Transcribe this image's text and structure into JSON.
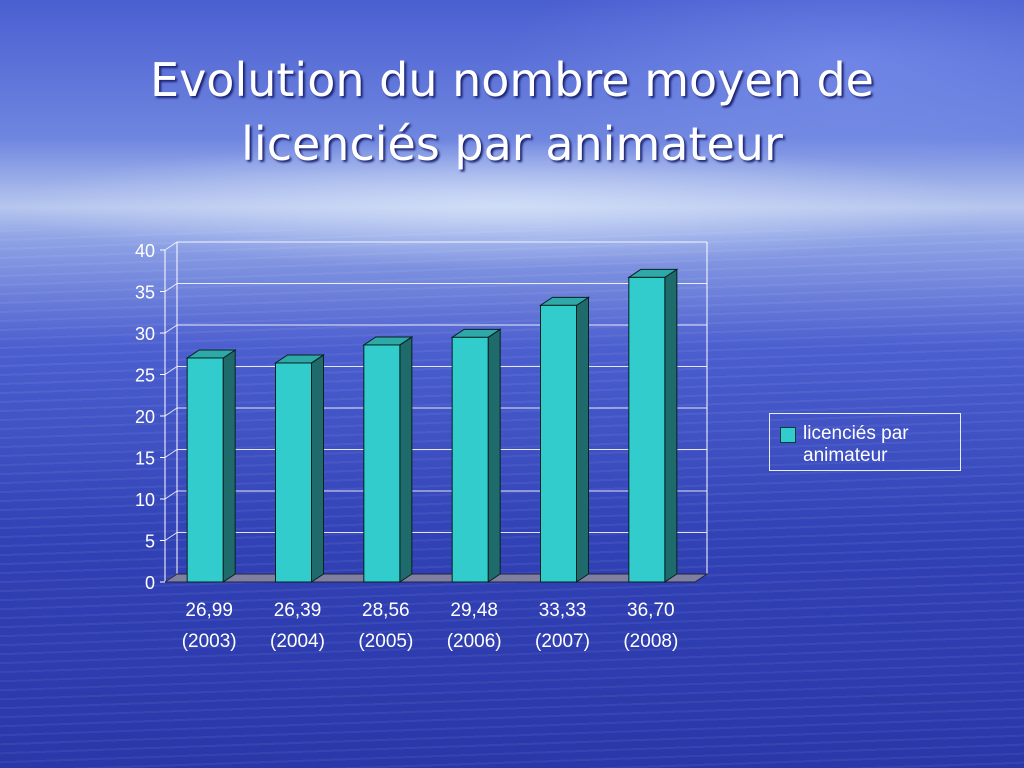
{
  "slide": {
    "title_line1": "Evolution du nombre moyen de",
    "title_line2": "licenciés par animateur"
  },
  "chart_data": {
    "type": "bar",
    "title": "",
    "xlabel": "",
    "ylabel": "",
    "ylim": [
      0,
      40
    ],
    "yticks": [
      "0",
      "5",
      "10",
      "15",
      "20",
      "25",
      "30",
      "35",
      "40"
    ],
    "categories": [
      "26,99 (2003)",
      "26,39 (2004)",
      "28,56 (2005)",
      "29,48 (2006)",
      "33,33 (2007)",
      "36,70 (2008)"
    ],
    "category_lines": [
      [
        "26,99",
        "(2003)"
      ],
      [
        "26,39",
        "(2004)"
      ],
      [
        "28,56",
        "(2005)"
      ],
      [
        "29,48",
        "(2006)"
      ],
      [
        "33,33",
        "(2007)"
      ],
      [
        "36,70",
        "(2008)"
      ]
    ],
    "series": [
      {
        "name": "licenciés par animateur",
        "values": [
          26.99,
          26.39,
          28.56,
          29.48,
          33.33,
          36.7
        ]
      }
    ],
    "grid": true,
    "legend": "right",
    "style": "3d-column",
    "colors": {
      "bar_front": "#33cccc",
      "bar_side": "#1f6b6b",
      "bar_top": "#2fa8a8",
      "floor": "#7f7f9f",
      "grid": "#ffffff"
    }
  }
}
